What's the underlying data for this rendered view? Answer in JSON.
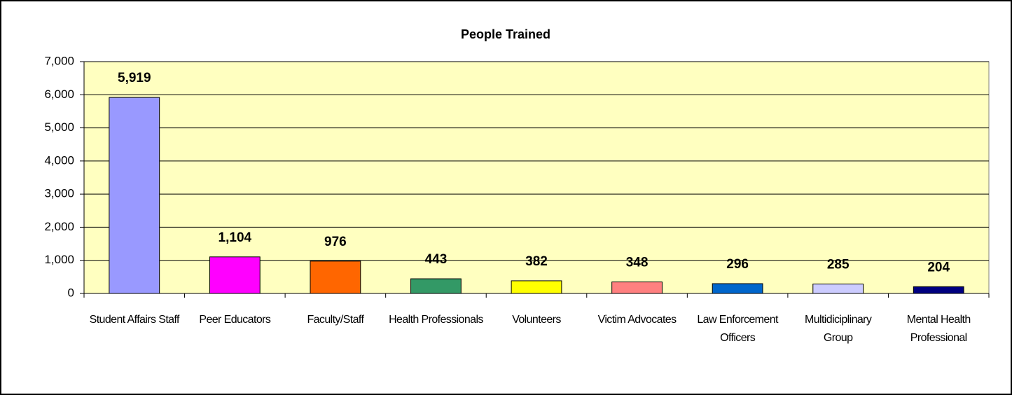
{
  "chart_data": {
    "type": "bar",
    "title": "People Trained",
    "categories": [
      "Student Affairs Staff",
      "Peer Educators",
      "Faculty/Staff",
      "Health Professionals",
      "Volunteers",
      "Victim Advocates",
      "Law Enforcement Officers",
      "Multidiciplinary Group",
      "Mental Health Professional"
    ],
    "values": [
      5919,
      1104,
      976,
      443,
      382,
      348,
      296,
      285,
      204
    ],
    "value_labels": [
      "5,919",
      "1,104",
      "976",
      "443",
      "382",
      "348",
      "296",
      "285",
      "204"
    ],
    "colors": [
      "#9999ff",
      "#ff00ff",
      "#ff6600",
      "#339966",
      "#ffff00",
      "#ff8080",
      "#0066cc",
      "#ccccff",
      "#000080"
    ],
    "ylim": [
      0,
      7000
    ],
    "yticks": [
      0,
      {
        "value": 1000,
        "label": "1,000"
      },
      {
        "value": 2000,
        "label": "2,000"
      },
      {
        "value": 3000,
        "label": "3,000"
      },
      {
        "value": 4000,
        "label": "4,000"
      },
      {
        "value": 5000,
        "label": "5,000"
      },
      {
        "value": 6000,
        "label": "6,000"
      },
      {
        "value": 7000,
        "label": "7,000"
      }
    ],
    "grid": true,
    "plot_background": "#ffffc0"
  }
}
